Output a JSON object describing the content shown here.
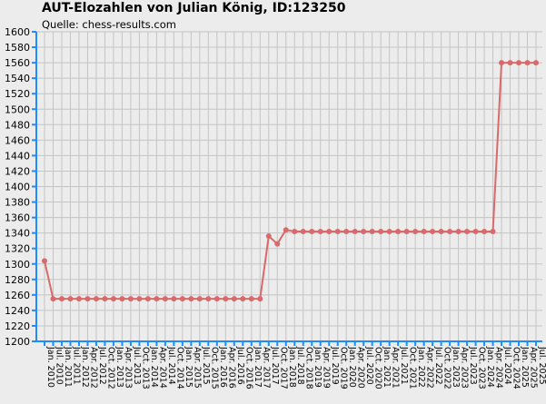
{
  "chart_data": {
    "type": "line",
    "title": "AUT-Elozahlen von Julian König, ID:123250",
    "subtitle": "Quelle: chess-results.com",
    "xlabel": "",
    "ylabel": "",
    "ylim": [
      1200,
      1600
    ],
    "yticks": [
      1200,
      1220,
      1240,
      1260,
      1280,
      1300,
      1320,
      1340,
      1360,
      1380,
      1400,
      1420,
      1440,
      1460,
      1480,
      1500,
      1520,
      1540,
      1560,
      1580,
      1600
    ],
    "grid": true,
    "categories": [
      "Jan. 2010",
      "Jul. 2010",
      "Jan. 2011",
      "Jul. 2011",
      "Jan. 2012",
      "Apr. 2012",
      "Jul. 2012",
      "Oct. 2012",
      "Jan. 2013",
      "Apr. 2013",
      "Jul. 2013",
      "Oct. 2013",
      "Jan. 2014",
      "Apr. 2014",
      "Jul. 2014",
      "Oct. 2014",
      "Jan. 2015",
      "Apr. 2015",
      "Jul. 2015",
      "Oct. 2015",
      "Jan. 2016",
      "Apr. 2016",
      "Jul. 2016",
      "Oct. 2016",
      "Jan. 2017",
      "Apr. 2017",
      "Jul. 2017",
      "Oct. 2017",
      "Jan. 2018",
      "Jul. 2018",
      "Oct. 2018",
      "Jan. 2019",
      "Apr. 2019",
      "Jul. 2019",
      "Oct. 2019",
      "Jan. 2020",
      "Apr. 2020",
      "Jul. 2020",
      "Oct. 2020",
      "Jan. 2021",
      "Apr. 2021",
      "Jul. 2021",
      "Oct. 2021",
      "Jan. 2022",
      "Apr. 2022",
      "Jul. 2022",
      "Oct. 2022",
      "Jan. 2023",
      "Apr. 2023",
      "Jul. 2023",
      "Oct. 2023",
      "Jan. 2024",
      "Apr. 2024",
      "Jul. 2024",
      "Oct. 2024",
      "Jan. 2025",
      "Apr. 2025",
      "Jul. 2025"
    ],
    "tick_labels": [
      "Jan. 2010",
      "Jul. 2010",
      "Jan. 2011",
      "Jul. 2011",
      "Jan. 2012",
      "Apr. 2012",
      "Jul. 2012",
      "Oct. 2012",
      "Jan. 2013",
      "Apr. 2013",
      "Jul. 2013",
      "Oct. 2013",
      "Jan. 2014",
      "Apr. 2014",
      "Jul. 2014",
      "Oct. 2014",
      "Jan. 2015",
      "Apr. 2015",
      "Jul. 2015",
      "Oct. 2015",
      "Jan. 2016",
      "Apr. 2016",
      "Jul. 2016",
      "Oct. 2016",
      "Jan. 2017",
      "Apr. 2017",
      "Jul. 2017",
      "Oct. 2017",
      "Jan. 2018",
      "Jul. 2018",
      "Oct. 2018",
      "Jan. 2019",
      "Apr. 2019",
      "Jul. 2019",
      "Oct. 2019",
      "Jan. 2020",
      "Apr. 2020",
      "Jul. 2020",
      "Oct. 2020",
      "Jan. 2021",
      "Apr. 2021",
      "Jul. 2021",
      "Oct. 2021",
      "Jan. 2022",
      "Apr. 2022",
      "Jul. 2022",
      "Oct. 2022",
      "Jan. 2023",
      "Apr. 2023",
      "Jul. 2023",
      "Oct. 2023",
      "Jan. 2024",
      "Apr. 2024",
      "Jul. 2024",
      "Oct. 2024",
      "Jan. 2025",
      "Apr. 2025",
      "Jul. 2025"
    ],
    "series": [
      {
        "values": [
          1304,
          1255,
          1255,
          1255,
          1255,
          1255,
          1255,
          1255,
          1255,
          1255,
          1255,
          1255,
          1255,
          1255,
          1255,
          1255,
          1255,
          1255,
          1255,
          1255,
          1255,
          1255,
          1255,
          1255,
          1255,
          1255,
          1336,
          1326,
          1344,
          1342,
          1342,
          1342,
          1342,
          1342,
          1342,
          1342,
          1342,
          1342,
          1342,
          1342,
          1342,
          1342,
          1342,
          1342,
          1342,
          1342,
          1342,
          1342,
          1342,
          1342,
          1342,
          1342,
          1342,
          1560,
          1560,
          1560,
          1560,
          1560
        ],
        "color": "#d9696b"
      }
    ],
    "colors": {
      "background": "#ececec",
      "grid": "#c4c4c4",
      "axis": "#1e8cff",
      "line": "#d9696b"
    }
  }
}
